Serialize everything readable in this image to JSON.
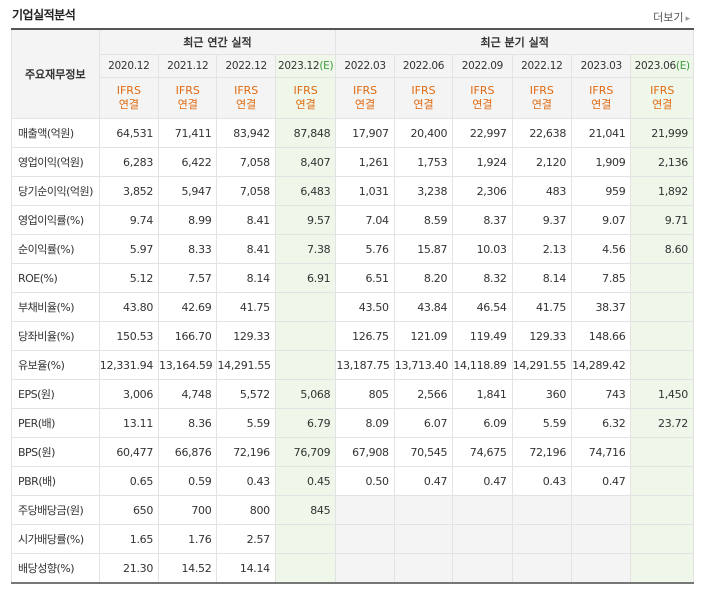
{
  "title": "기업실적분석",
  "more_label": "더보기",
  "left_header": "주요재무정보",
  "groups": {
    "annual": "최근 연간 실적",
    "quarterly": "최근 분기 실적"
  },
  "periods": [
    {
      "label": "2020.12",
      "est": ""
    },
    {
      "label": "2021.12",
      "est": ""
    },
    {
      "label": "2022.12",
      "est": ""
    },
    {
      "label": "2023.12",
      "est": "(E)"
    },
    {
      "label": "2022.03",
      "est": ""
    },
    {
      "label": "2022.06",
      "est": ""
    },
    {
      "label": "2022.09",
      "est": ""
    },
    {
      "label": "2022.12",
      "est": ""
    },
    {
      "label": "2023.03",
      "est": ""
    },
    {
      "label": "2023.06",
      "est": "(E)"
    }
  ],
  "ifrs": {
    "top": "IFRS",
    "bottom": "연결"
  },
  "rows": [
    {
      "label": "매출액(억원)",
      "values": [
        "64,531",
        "71,411",
        "83,942",
        "87,848",
        "17,907",
        "20,400",
        "22,997",
        "22,638",
        "21,041",
        "21,999"
      ]
    },
    {
      "label": "영업이익(억원)",
      "values": [
        "6,283",
        "6,422",
        "7,058",
        "8,407",
        "1,261",
        "1,753",
        "1,924",
        "2,120",
        "1,909",
        "2,136"
      ]
    },
    {
      "label": "당기순이익(억원)",
      "values": [
        "3,852",
        "5,947",
        "7,058",
        "6,483",
        "1,031",
        "3,238",
        "2,306",
        "483",
        "959",
        "1,892"
      ]
    },
    {
      "label": "영업이익률(%)",
      "values": [
        "9.74",
        "8.99",
        "8.41",
        "9.57",
        "7.04",
        "8.59",
        "8.37",
        "9.37",
        "9.07",
        "9.71"
      ]
    },
    {
      "label": "순이익률(%)",
      "values": [
        "5.97",
        "8.33",
        "8.41",
        "7.38",
        "5.76",
        "15.87",
        "10.03",
        "2.13",
        "4.56",
        "8.60"
      ]
    },
    {
      "label": "ROE(%)",
      "values": [
        "5.12",
        "7.57",
        "8.14",
        "6.91",
        "6.51",
        "8.20",
        "8.32",
        "8.14",
        "7.85",
        ""
      ]
    },
    {
      "label": "부채비율(%)",
      "values": [
        "43.80",
        "42.69",
        "41.75",
        "",
        "43.50",
        "43.84",
        "46.54",
        "41.75",
        "38.37",
        ""
      ]
    },
    {
      "label": "당좌비율(%)",
      "values": [
        "150.53",
        "166.70",
        "129.33",
        "",
        "126.75",
        "121.09",
        "119.49",
        "129.33",
        "148.66",
        ""
      ]
    },
    {
      "label": "유보율(%)",
      "values": [
        "12,331.94",
        "13,164.59",
        "14,291.55",
        "",
        "13,187.75",
        "13,713.40",
        "14,118.89",
        "14,291.55",
        "14,289.42",
        ""
      ]
    },
    {
      "label": "EPS(원)",
      "values": [
        "3,006",
        "4,748",
        "5,572",
        "5,068",
        "805",
        "2,566",
        "1,841",
        "360",
        "743",
        "1,450"
      ]
    },
    {
      "label": "PER(배)",
      "values": [
        "13.11",
        "8.36",
        "5.59",
        "6.79",
        "8.09",
        "6.07",
        "6.09",
        "5.59",
        "6.32",
        "23.72"
      ]
    },
    {
      "label": "BPS(원)",
      "values": [
        "60,477",
        "66,876",
        "72,196",
        "76,709",
        "67,908",
        "70,545",
        "74,675",
        "72,196",
        "74,716",
        ""
      ]
    },
    {
      "label": "PBR(배)",
      "values": [
        "0.65",
        "0.59",
        "0.43",
        "0.45",
        "0.50",
        "0.47",
        "0.47",
        "0.43",
        "0.47",
        ""
      ]
    },
    {
      "label": "주당배당금(원)",
      "values": [
        "650",
        "700",
        "800",
        "845",
        "",
        "",
        "",
        "",
        "",
        ""
      ]
    },
    {
      "label": "시가배당률(%)",
      "values": [
        "1.65",
        "1.76",
        "2.57",
        "",
        "",
        "",
        "",
        "",
        "",
        ""
      ]
    },
    {
      "label": "배당성향(%)",
      "values": [
        "21.30",
        "14.52",
        "14.14",
        "",
        "",
        "",
        "",
        "",
        "",
        ""
      ]
    }
  ]
}
